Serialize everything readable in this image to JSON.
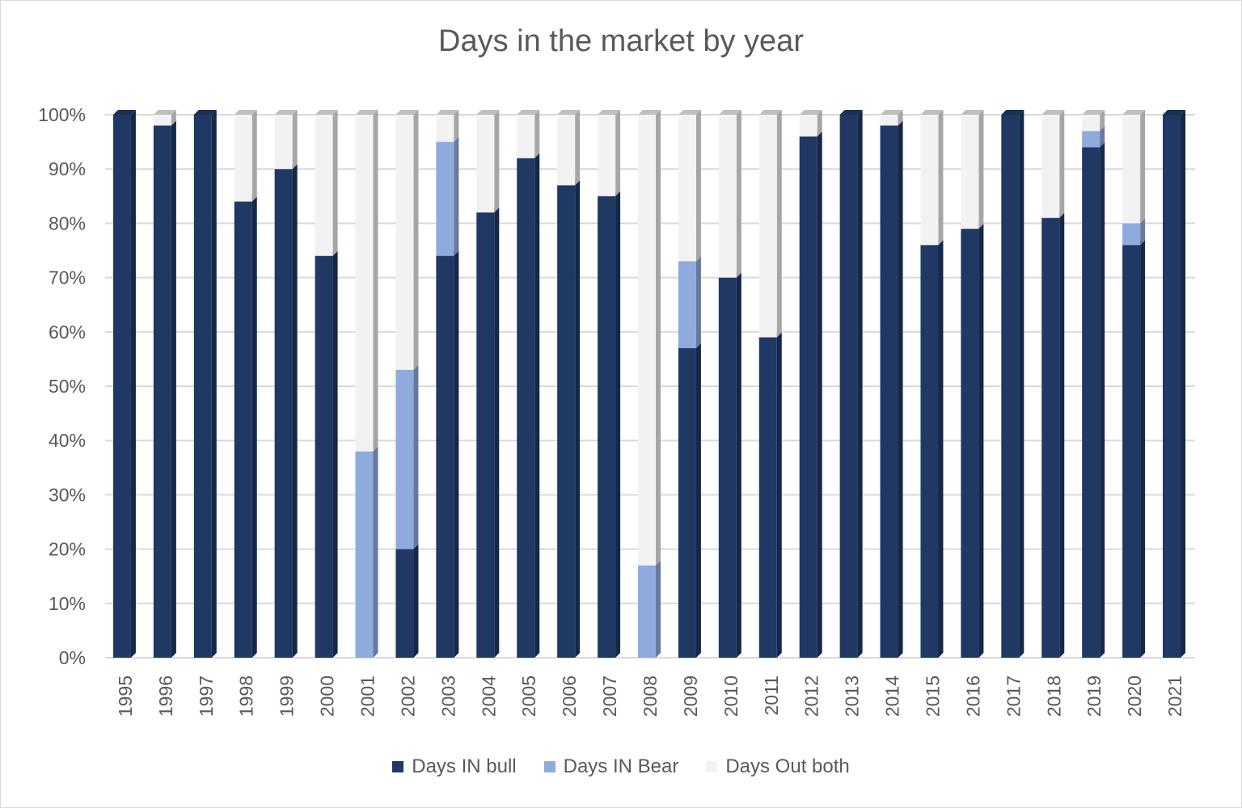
{
  "chart_data": {
    "type": "bar",
    "stacked": true,
    "title": "Days in the market by year",
    "categories": [
      "1995",
      "1996",
      "1997",
      "1998",
      "1999",
      "2000",
      "2001",
      "2002",
      "2003",
      "2004",
      "2005",
      "2006",
      "2007",
      "2008",
      "2009",
      "2010",
      "2011",
      "2012",
      "2013",
      "2014",
      "2015",
      "2016",
      "2017",
      "2018",
      "2019",
      "2020",
      "2021"
    ],
    "series": [
      {
        "name": "Days IN bull",
        "color": "#1f3864",
        "values": [
          100,
          98,
          100,
          84,
          90,
          74,
          0,
          20,
          74,
          82,
          92,
          87,
          85,
          0,
          57,
          70,
          59,
          96,
          100,
          98,
          76,
          79,
          100,
          81,
          94,
          76,
          100
        ]
      },
      {
        "name": "Days IN Bear",
        "color": "#8faadc",
        "values": [
          0,
          0,
          0,
          0,
          0,
          0,
          38,
          33,
          21,
          0,
          0,
          0,
          0,
          17,
          16,
          0,
          0,
          0,
          0,
          0,
          0,
          0,
          0,
          0,
          3,
          4,
          0
        ]
      },
      {
        "name": "Days Out both",
        "color": "#f2f2f2",
        "values": [
          0,
          2,
          0,
          16,
          10,
          26,
          62,
          47,
          5,
          18,
          8,
          13,
          15,
          83,
          27,
          30,
          41,
          4,
          0,
          2,
          24,
          21,
          0,
          19,
          3,
          20,
          0
        ]
      }
    ],
    "y_ticks": [
      "0%",
      "10%",
      "20%",
      "30%",
      "40%",
      "50%",
      "60%",
      "70%",
      "80%",
      "90%",
      "100%"
    ],
    "ylim": [
      0,
      100
    ],
    "grid": true,
    "legend_position": "bottom"
  }
}
